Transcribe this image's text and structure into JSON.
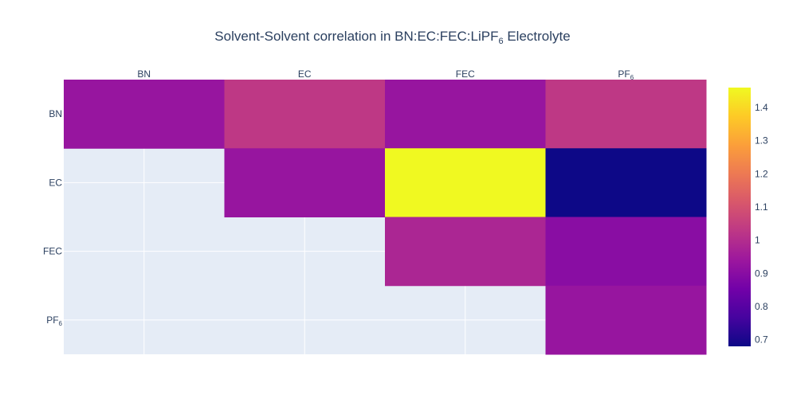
{
  "chart_data": {
    "type": "heatmap",
    "title": "Solvent-Solvent correlation in BN:EC:FEC:LiPF",
    "title_sub": "6",
    "title_suffix": " Electrolyte",
    "x_categories": [
      {
        "label": "BN",
        "sub": ""
      },
      {
        "label": "EC",
        "sub": ""
      },
      {
        "label": "FEC",
        "sub": ""
      },
      {
        "label": "PF",
        "sub": "6"
      }
    ],
    "y_categories": [
      {
        "label": "BN",
        "sub": ""
      },
      {
        "label": "EC",
        "sub": ""
      },
      {
        "label": "FEC",
        "sub": ""
      },
      {
        "label": "PF",
        "sub": "6"
      }
    ],
    "z": [
      [
        0.93,
        1.03,
        0.93,
        1.03
      ],
      [
        null,
        0.93,
        1.46,
        0.68
      ],
      [
        null,
        null,
        0.98,
        0.9
      ],
      [
        null,
        null,
        null,
        0.93
      ]
    ],
    "colorscale": "plasma",
    "zmin": 0.68,
    "zmax": 1.46,
    "colorbar_ticks": [
      "0.7",
      "0.8",
      "0.9",
      "1",
      "1.1",
      "1.2",
      "1.3",
      "1.4"
    ],
    "x_axis_side": "top",
    "grid": true,
    "colors": {
      "plot_bg": "#e5ecf6",
      "grid": "#ffffff",
      "text": "#2a3f5f"
    }
  }
}
